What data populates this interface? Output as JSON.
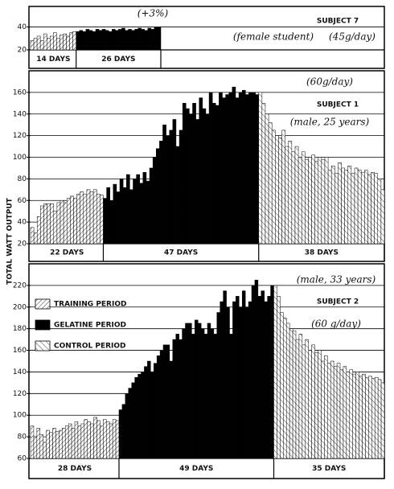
{
  "ylabel": "TOTAL WATT OUTPUT",
  "legend": [
    {
      "name": "TRAINING PERIOD",
      "style": "training"
    },
    {
      "name": "GELATINE PERIOD",
      "style": "gelatine"
    },
    {
      "name": "CONTROL PERIOD",
      "style": "control"
    }
  ],
  "chart_data": [
    {
      "type": "bar",
      "subject": "SUBJECT 7",
      "notes": [
        "(+3%)",
        "(female student)",
        "(45g/day)"
      ],
      "ylim": [
        20,
        58
      ],
      "yticks": [
        20,
        40
      ],
      "grid": true,
      "periods": [
        {
          "label": "14 DAYS",
          "style": "training",
          "values": [
            28,
            30,
            32,
            28,
            34,
            30,
            32,
            35,
            30,
            33,
            34,
            32,
            35,
            36
          ]
        },
        {
          "label": "26 DAYS",
          "style": "gelatine",
          "values": [
            36,
            37,
            36,
            38,
            37,
            36,
            38,
            37,
            38,
            37,
            36,
            38,
            37,
            38,
            39,
            37,
            38,
            37,
            38,
            39,
            38,
            37,
            39,
            38,
            40,
            40
          ]
        }
      ]
    },
    {
      "type": "bar",
      "subject": "SUBJECT 1",
      "notes": [
        "(60g/day)",
        "(male, 25 years)"
      ],
      "ylim": [
        20,
        180
      ],
      "yticks": [
        20,
        40,
        60,
        80,
        100,
        120,
        140,
        160
      ],
      "grid": true,
      "periods": [
        {
          "label": "22 DAYS",
          "style": "training",
          "values": [
            35,
            30,
            45,
            55,
            57,
            57,
            57,
            50,
            58,
            60,
            58,
            62,
            64,
            62,
            66,
            68,
            66,
            70,
            68,
            70,
            66,
            65
          ]
        },
        {
          "label": "47 DAYS",
          "style": "gelatine",
          "values": [
            62,
            72,
            60,
            75,
            68,
            80,
            72,
            84,
            70,
            80,
            84,
            76,
            86,
            78,
            90,
            100,
            108,
            115,
            130,
            120,
            125,
            135,
            110,
            125,
            150,
            145,
            140,
            150,
            135,
            155,
            145,
            140,
            160,
            150,
            148,
            160,
            155,
            158,
            160,
            165,
            155,
            160,
            162,
            158,
            160,
            160,
            158
          ]
        },
        {
          "label": "38 DAYS",
          "style": "control",
          "values": [
            160,
            150,
            140,
            132,
            125,
            120,
            118,
            125,
            110,
            115,
            105,
            110,
            100,
            105,
            98,
            100,
            102,
            96,
            100,
            98,
            100,
            88,
            92,
            85,
            95,
            90,
            88,
            92,
            85,
            90,
            88,
            86,
            88,
            84,
            86,
            85,
            80,
            70
          ]
        }
      ]
    },
    {
      "type": "bar",
      "subject": "SUBJECT 2",
      "notes": [
        "(male, 33 years)",
        "(60 g/day)"
      ],
      "ylim": [
        60,
        240
      ],
      "yticks": [
        60,
        80,
        100,
        120,
        140,
        160,
        180,
        200,
        220
      ],
      "grid": true,
      "periods": [
        {
          "label": "28 DAYS",
          "style": "training",
          "values": [
            90,
            80,
            88,
            82,
            75,
            86,
            84,
            88,
            85,
            86,
            88,
            90,
            92,
            88,
            94,
            90,
            92,
            96,
            94,
            92,
            98,
            95,
            90,
            96,
            94,
            92,
            96,
            95
          ]
        },
        {
          "label": "49 DAYS",
          "style": "gelatine",
          "values": [
            105,
            110,
            120,
            125,
            130,
            135,
            138,
            140,
            145,
            150,
            140,
            148,
            155,
            160,
            165,
            165,
            150,
            170,
            175,
            170,
            180,
            185,
            185,
            175,
            188,
            185,
            180,
            175,
            185,
            180,
            175,
            195,
            205,
            215,
            200,
            175,
            205,
            210,
            200,
            215,
            200,
            205,
            220,
            225,
            210,
            215,
            205,
            210,
            220
          ]
        },
        {
          "label": "35 DAYS",
          "style": "control",
          "values": [
            220,
            210,
            195,
            190,
            185,
            180,
            178,
            170,
            175,
            165,
            170,
            160,
            165,
            158,
            160,
            150,
            155,
            148,
            150,
            145,
            148,
            142,
            145,
            140,
            142,
            138,
            140,
            136,
            138,
            135,
            136,
            134,
            135,
            133,
            130
          ]
        }
      ]
    }
  ]
}
